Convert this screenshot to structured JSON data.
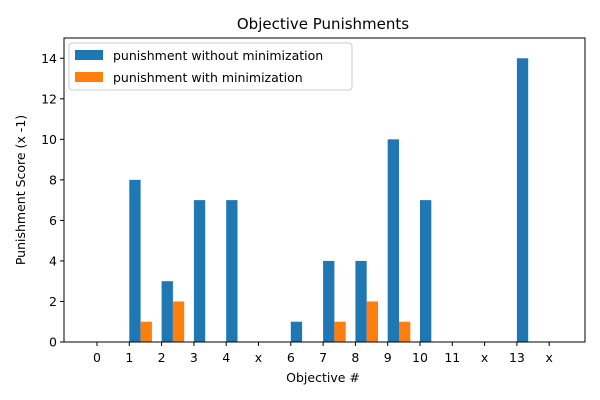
{
  "chart_data": {
    "type": "bar",
    "title": "Objective Punishments",
    "xlabel": "Objective #",
    "ylabel": "Punishment Score (x -1)",
    "categories": [
      "0",
      "1",
      "2",
      "3",
      "4",
      "x",
      "6",
      "7",
      "8",
      "9",
      "10",
      "11",
      "x",
      "13",
      "x"
    ],
    "ylim": [
      0,
      15
    ],
    "yticks": [
      0,
      2,
      4,
      6,
      8,
      10,
      12,
      14
    ],
    "grid": false,
    "legend_position": "top-left",
    "series": [
      {
        "name": "punishment without minimization",
        "color": "#1f77b4",
        "values": [
          0,
          8,
          3,
          7,
          7,
          0,
          1,
          4,
          4,
          10,
          7,
          0,
          0,
          14,
          0
        ]
      },
      {
        "name": "punishment with minimization",
        "color": "#ff7f0e",
        "values": [
          0,
          1,
          2,
          0,
          0,
          0,
          0,
          1,
          2,
          1,
          0,
          0,
          0,
          0,
          0
        ]
      }
    ]
  }
}
